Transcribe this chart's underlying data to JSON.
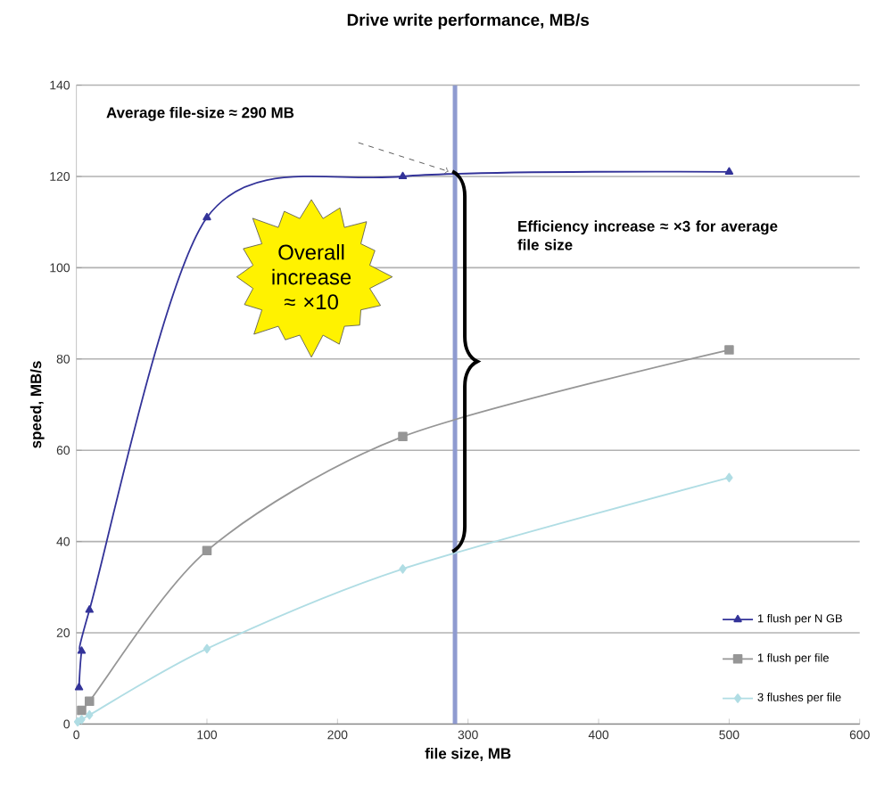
{
  "chart_data": {
    "type": "line",
    "title": "Drive write performance, MB/s",
    "xlabel": "file size, MB",
    "ylabel": "speed, MB/s",
    "xlim": [
      0,
      600
    ],
    "ylim": [
      0,
      140
    ],
    "xticks": [
      0,
      100,
      200,
      300,
      400,
      500,
      600
    ],
    "yticks": [
      0,
      20,
      40,
      60,
      80,
      100,
      120,
      140
    ],
    "grid": "y",
    "legend": "bottom right",
    "series": [
      {
        "name": "1 flush per N GB",
        "color": "#333399",
        "marker": "triangle",
        "x": [
          2,
          4,
          10,
          100,
          250,
          500
        ],
        "values": [
          8,
          16,
          25,
          111,
          120,
          121
        ]
      },
      {
        "name": "1 flush per file",
        "color": "#969696",
        "marker": "square",
        "x": [
          4,
          10,
          100,
          250,
          500
        ],
        "values": [
          3,
          5,
          38,
          63,
          82
        ]
      },
      {
        "name": "3 flushes per file",
        "color": "#b0dde4",
        "marker": "diamond",
        "x": [
          1,
          4,
          10,
          100,
          250,
          500
        ],
        "values": [
          0.5,
          1,
          2,
          16.5,
          34,
          54
        ]
      }
    ],
    "ref_lines": [
      {
        "axis": "x",
        "value": 290,
        "color": "#8f9bd0"
      }
    ],
    "annotations": [
      "Average file-size ≈ 290 MB",
      "Efficiency increase ≈ ×3 for average file size",
      "Overall increase ≈ ×10"
    ]
  }
}
